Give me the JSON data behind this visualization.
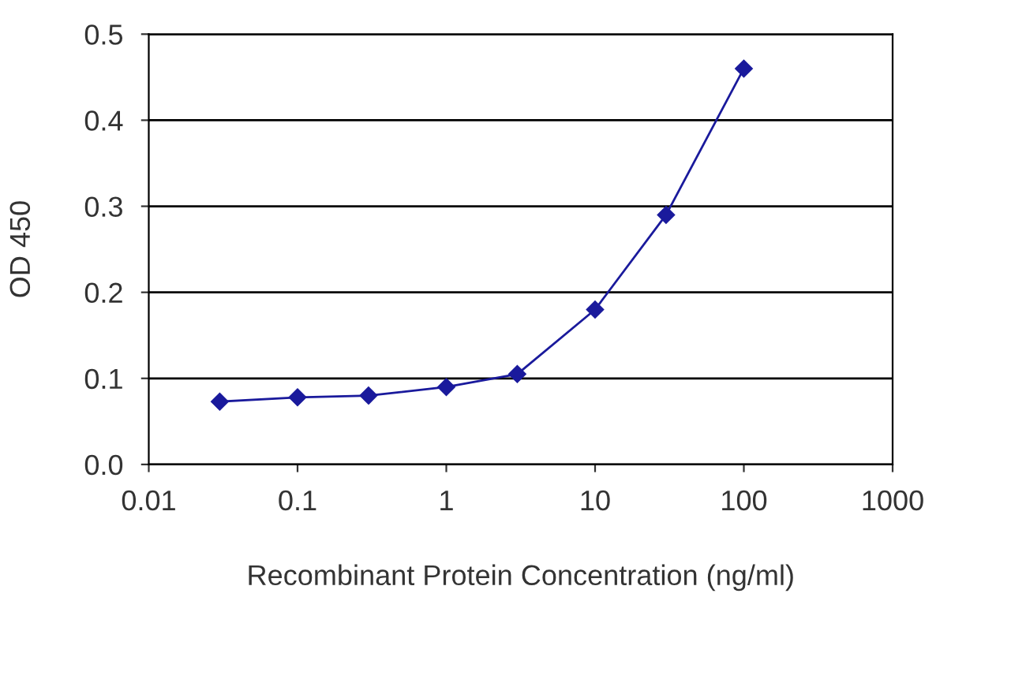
{
  "chart_data": {
    "type": "line",
    "xlabel": "Recombinant Protein Concentration (ng/ml)",
    "ylabel": "OD 450",
    "x": [
      0.03,
      0.1,
      0.3,
      1,
      3,
      10,
      30,
      100
    ],
    "series": [
      {
        "color": "#1a1a9c",
        "values": [
          0.073,
          0.078,
          0.08,
          0.09,
          0.105,
          0.18,
          0.29,
          0.46
        ]
      }
    ],
    "log": "x",
    "xlim": [
      0.01,
      1000
    ],
    "xticks": [
      0.01,
      0.1,
      1,
      10,
      100,
      1000
    ],
    "ylim": [
      0,
      0.5
    ],
    "yticks": [
      {
        "value": 0,
        "label": "0.0"
      },
      0.1,
      0.2,
      0.3,
      0.4,
      0.5
    ],
    "grid": "y",
    "marker": "diamond",
    "line_style": "solid",
    "legend": false
  }
}
